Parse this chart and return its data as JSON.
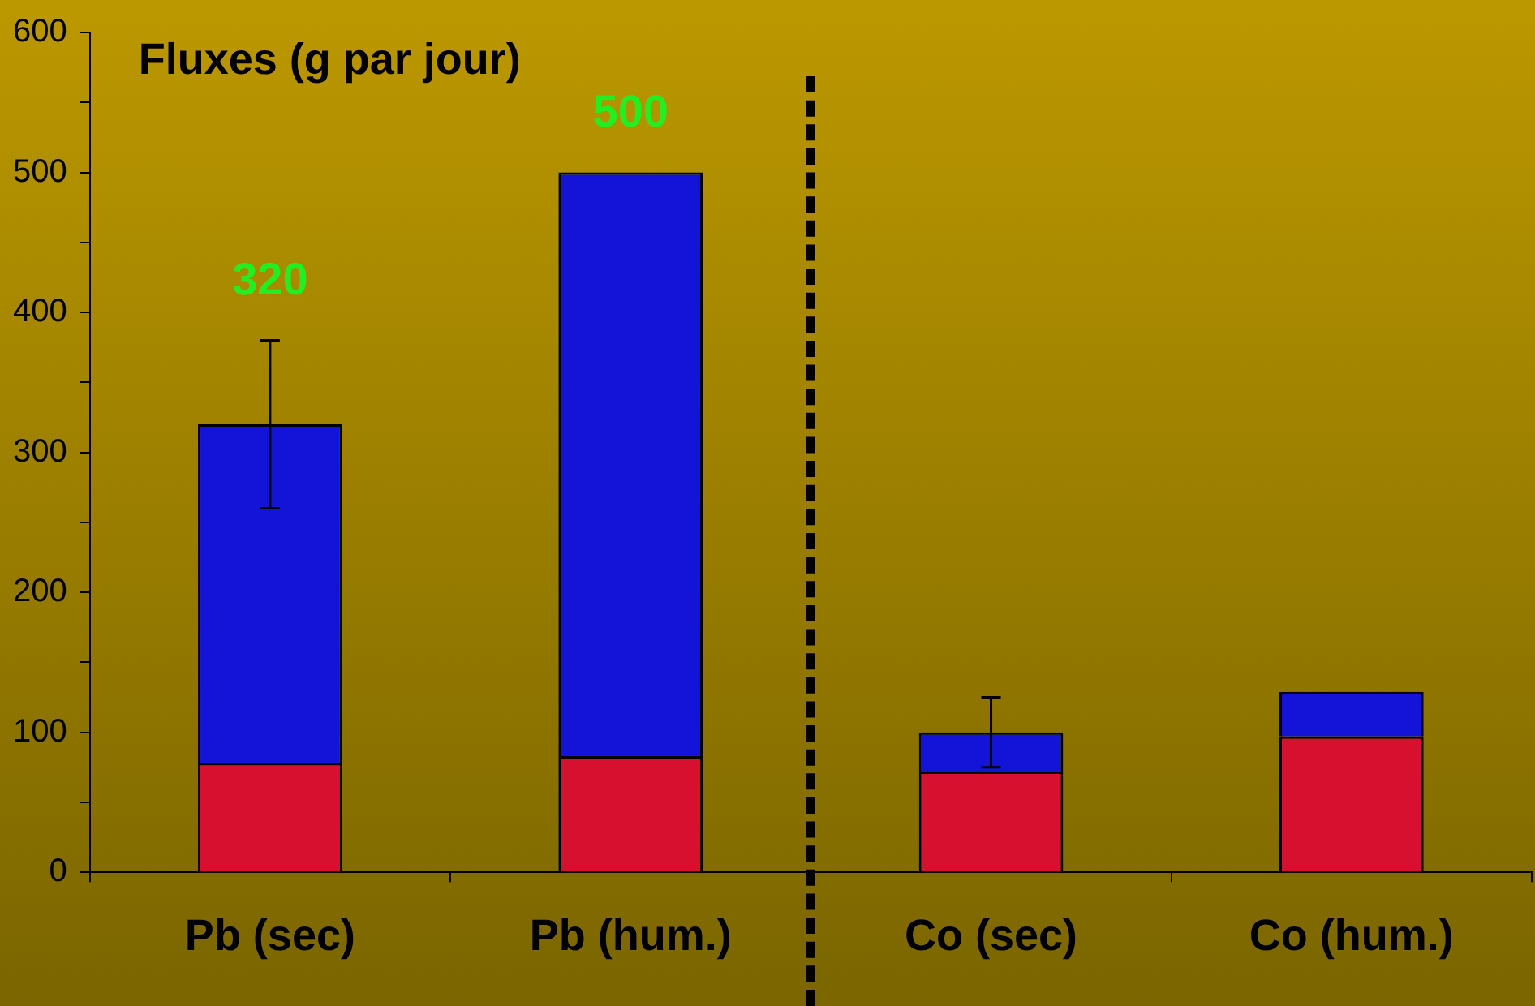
{
  "chart_data": {
    "type": "bar",
    "title": "Fluxes (g par jour)",
    "stacked": true,
    "categories": [
      "Pb (sec)",
      "Pb (hum.)",
      "Co (sec)",
      "Co (hum.)"
    ],
    "series": [
      {
        "color": "#d81030",
        "values": [
          78,
          83,
          72,
          97
        ]
      },
      {
        "color": "#1414d8",
        "values": [
          242,
          417,
          28,
          32
        ],
        "errors": [
          60,
          null,
          25,
          null
        ]
      }
    ],
    "totals": [
      "320",
      "500",
      null,
      null
    ],
    "ylim": [
      0,
      600
    ],
    "yticks": [
      0,
      {
        "value": 50,
        "label": null
      },
      100,
      {
        "value": 150,
        "label": null
      },
      200,
      {
        "value": 250,
        "label": null
      },
      300,
      {
        "value": 350,
        "label": null
      },
      400,
      {
        "value": 450,
        "label": null
      },
      500,
      {
        "value": 550,
        "label": null
      },
      600
    ],
    "grid": false,
    "legend": false
  }
}
